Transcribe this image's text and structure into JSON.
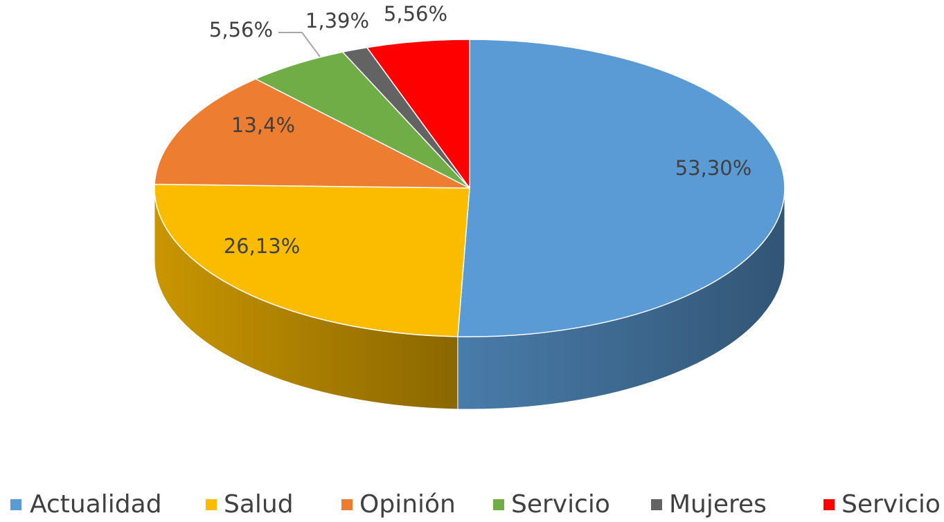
{
  "chart_data": {
    "type": "pie",
    "categories": [
      "Actualidad",
      "Salud",
      "Opinión",
      "Servicio",
      "Mujeres",
      "Servicio"
    ],
    "values": [
      53.3,
      26.13,
      13.4,
      5.56,
      1.39,
      5.56
    ],
    "value_labels": [
      "53,30%",
      "26,13%",
      "13,4%",
      "5,56%",
      "1,39%",
      "5,56%"
    ],
    "colors": [
      "#5b9bd5",
      "#fbbc00",
      "#ed7d31",
      "#70ad47",
      "#636363",
      "#ff0000"
    ],
    "legend": "bottom"
  }
}
